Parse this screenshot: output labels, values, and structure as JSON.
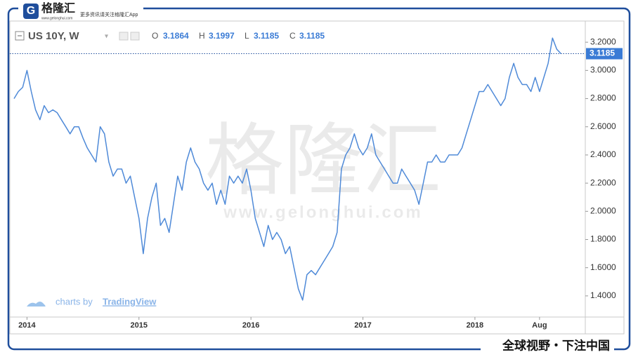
{
  "branding": {
    "logo": "格隆汇",
    "logo_url": "www.gelonghui.com",
    "tagline": "更多资讯请关注格隆汇App",
    "watermark": "格隆汇",
    "watermark_url": "www.gelonghui.com",
    "footer": "全球视野・下注中国",
    "credit_prefix": "charts by",
    "credit_brand": "TradingView"
  },
  "chart_data": {
    "type": "line",
    "title": "US 10Y, W",
    "ohlc": {
      "o_label": "O",
      "o": 3.1864,
      "h_label": "H",
      "h": 3.1997,
      "l_label": "L",
      "l": 3.1185,
      "c_label": "C",
      "c": 3.1185
    },
    "categories": [
      null,
      null,
      null,
      "2014",
      null,
      null,
      null,
      null,
      null,
      null,
      null,
      null,
      null,
      null,
      null,
      null,
      null,
      null,
      null,
      null,
      null,
      null,
      null,
      null,
      null,
      null,
      null,
      null,
      null,
      "2015",
      null,
      null,
      null,
      null,
      null,
      null,
      null,
      null,
      null,
      null,
      null,
      null,
      null,
      null,
      null,
      null,
      null,
      null,
      null,
      null,
      null,
      null,
      null,
      null,
      null,
      "2016",
      null,
      null,
      null,
      null,
      null,
      null,
      null,
      null,
      null,
      null,
      null,
      null,
      null,
      null,
      null,
      null,
      null,
      null,
      null,
      null,
      null,
      null,
      null,
      null,
      null,
      "2017",
      null,
      null,
      null,
      null,
      null,
      null,
      null,
      null,
      null,
      null,
      null,
      null,
      null,
      null,
      null,
      null,
      null,
      null,
      null,
      null,
      null,
      null,
      null,
      null,
      null,
      "2018",
      null,
      null,
      null,
      null,
      null,
      null,
      null,
      null,
      null,
      null,
      null,
      null,
      null,
      null,
      "Aug",
      null,
      null,
      null,
      null,
      null
    ],
    "series": [
      {
        "name": "US 10Y",
        "color": "#4f8ad8",
        "values": [
          2.8,
          2.85,
          2.88,
          3.0,
          2.85,
          2.72,
          2.65,
          2.75,
          2.7,
          2.72,
          2.7,
          2.65,
          2.6,
          2.55,
          2.6,
          2.6,
          2.52,
          2.45,
          2.4,
          2.35,
          2.6,
          2.55,
          2.35,
          2.25,
          2.3,
          2.3,
          2.2,
          2.25,
          2.1,
          1.95,
          1.7,
          1.95,
          2.1,
          2.2,
          1.9,
          1.95,
          1.85,
          2.05,
          2.25,
          2.15,
          2.35,
          2.45,
          2.35,
          2.3,
          2.2,
          2.15,
          2.2,
          2.05,
          2.15,
          2.05,
          2.25,
          2.2,
          2.25,
          2.2,
          2.3,
          2.15,
          1.95,
          1.85,
          1.75,
          1.9,
          1.8,
          1.85,
          1.8,
          1.7,
          1.75,
          1.6,
          1.45,
          1.37,
          1.55,
          1.58,
          1.55,
          1.6,
          1.65,
          1.7,
          1.75,
          1.85,
          2.3,
          2.4,
          2.45,
          2.55,
          2.45,
          2.4,
          2.45,
          2.55,
          2.4,
          2.35,
          2.3,
          2.25,
          2.2,
          2.2,
          2.3,
          2.25,
          2.2,
          2.15,
          2.05,
          2.2,
          2.35,
          2.35,
          2.4,
          2.35,
          2.35,
          2.4,
          2.4,
          2.4,
          2.45,
          2.55,
          2.65,
          2.75,
          2.85,
          2.85,
          2.9,
          2.85,
          2.8,
          2.75,
          2.8,
          2.95,
          3.05,
          2.95,
          2.9,
          2.9,
          2.85,
          2.95,
          2.85,
          2.95,
          3.05,
          3.23,
          3.15,
          3.1185
        ]
      }
    ],
    "ylim": [
      1.26,
      3.39
    ],
    "yticks": [
      {
        "value": 1.4,
        "label": "1.4000"
      },
      {
        "value": 1.6,
        "label": "1.6000"
      },
      {
        "value": 1.8,
        "label": "1.8000"
      },
      {
        "value": 2.0,
        "label": "2.0000"
      },
      {
        "value": 2.2,
        "label": "2.2000"
      },
      {
        "value": 2.4,
        "label": "2.4000"
      },
      {
        "value": 2.6,
        "label": "2.6000"
      },
      {
        "value": 2.8,
        "label": "2.8000"
      },
      {
        "value": 3.0,
        "label": "3.0000"
      },
      {
        "value": 3.2,
        "label": "3.2000"
      }
    ],
    "grid": false
  }
}
